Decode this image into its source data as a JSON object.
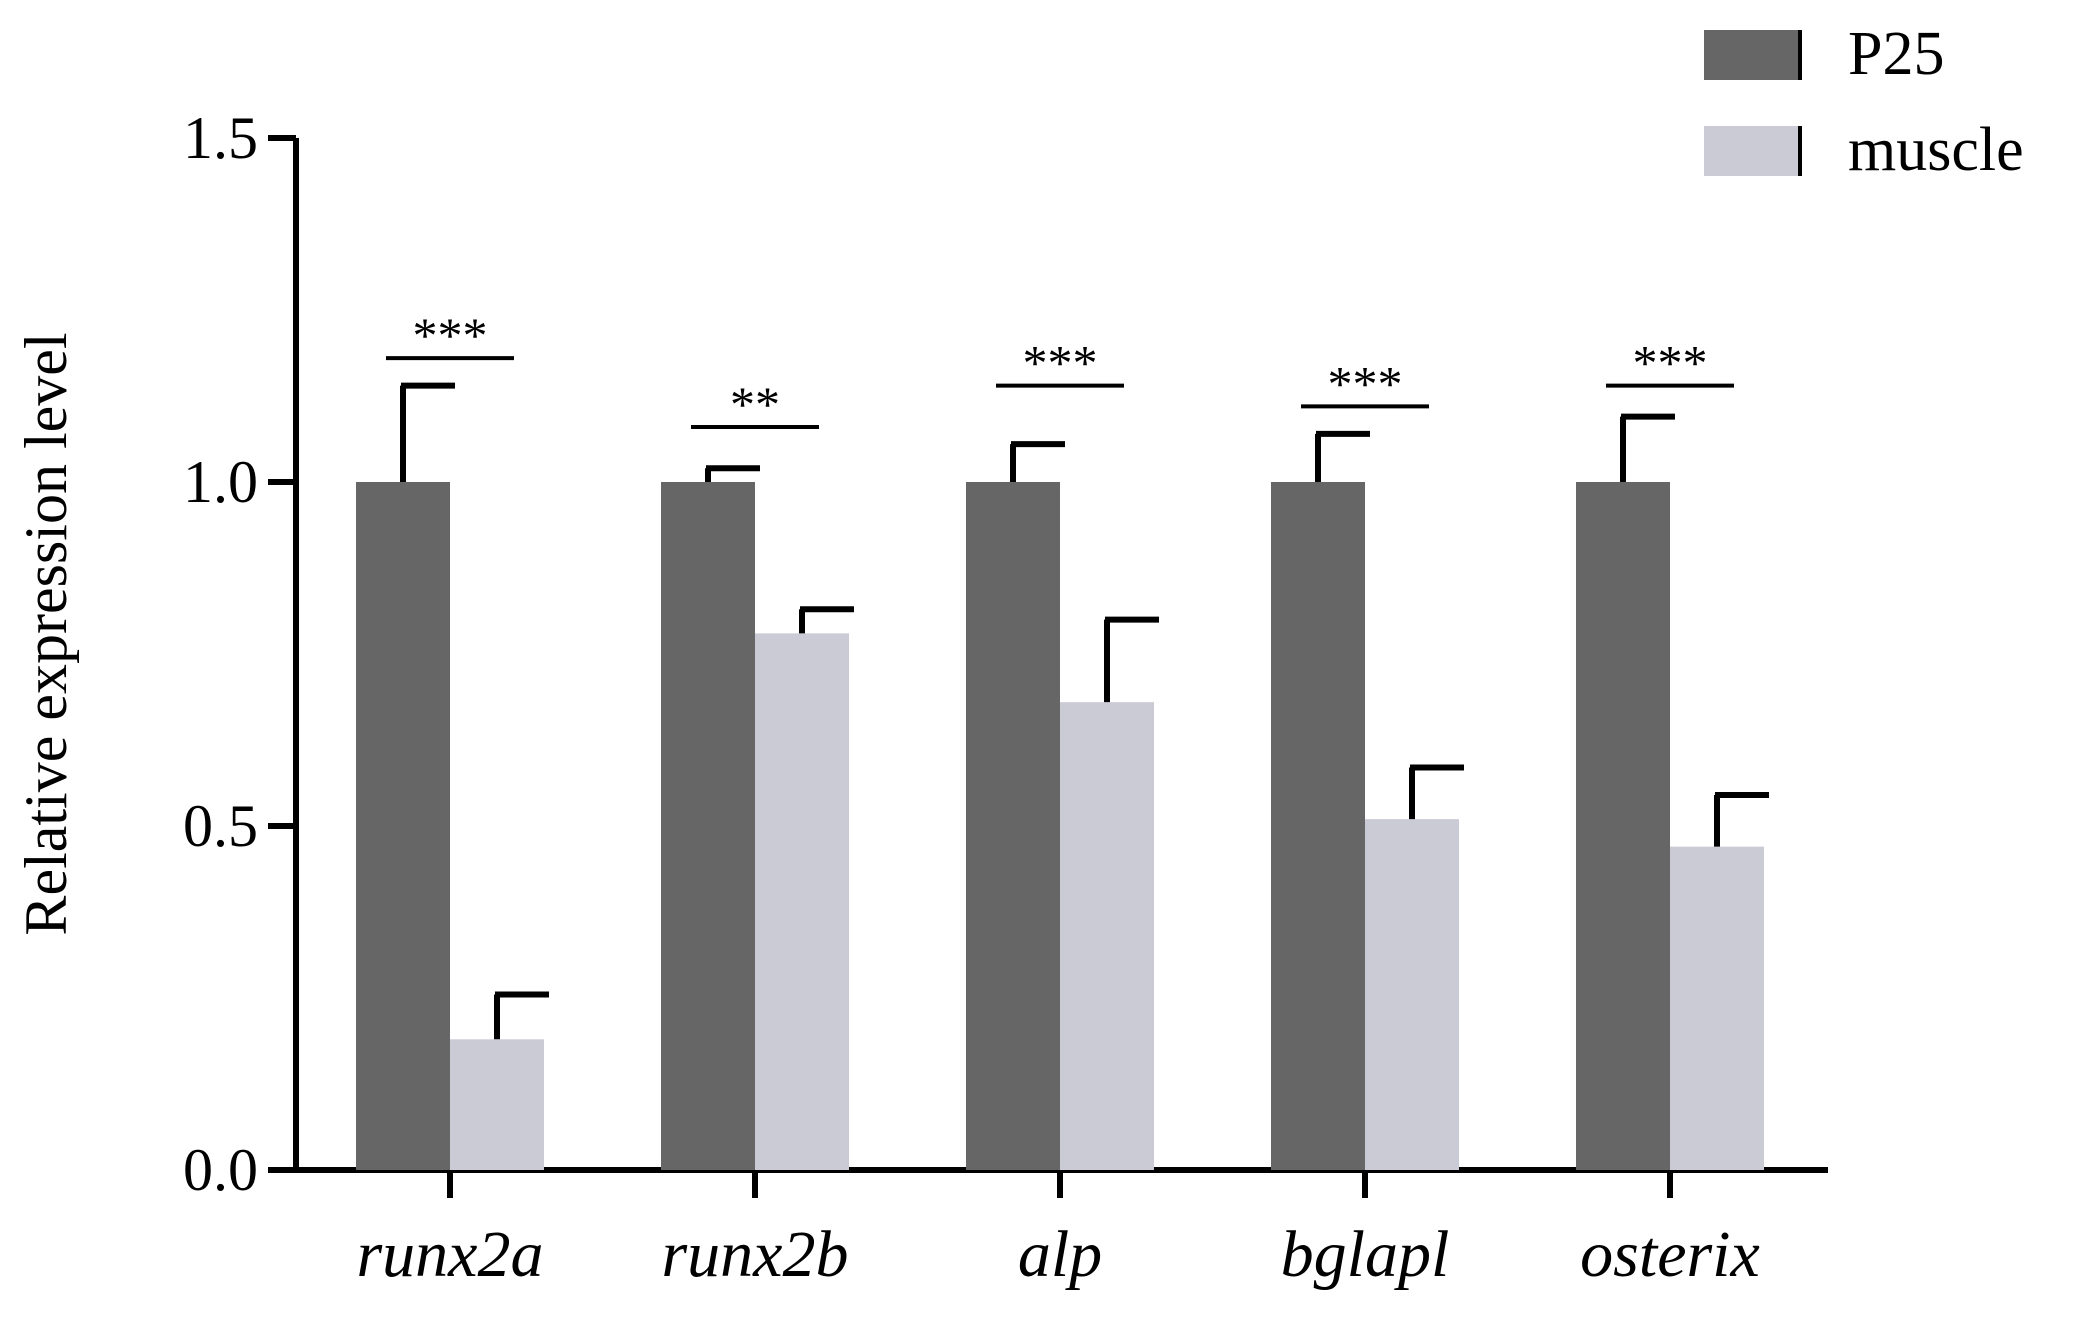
{
  "chart_data": {
    "type": "bar",
    "title": "",
    "xlabel": "",
    "ylabel": "Relative expression level",
    "ylim": [
      0,
      1.5
    ],
    "yticks": [
      0.0,
      0.5,
      1.0,
      1.5
    ],
    "ytick_labels": [
      "0.0",
      "0.5",
      "1.0",
      "1.5"
    ],
    "categories": [
      "runx2a",
      "runx2b",
      "alp",
      "bglapl",
      "osterix"
    ],
    "series": [
      {
        "name": "P25",
        "color": "#666666",
        "values": [
          1.0,
          1.0,
          1.0,
          1.0,
          1.0
        ],
        "errors": [
          0.14,
          0.02,
          0.055,
          0.07,
          0.095
        ]
      },
      {
        "name": "muscle",
        "color": "#cbcbd6",
        "values": [
          0.19,
          0.78,
          0.68,
          0.51,
          0.47
        ],
        "errors": [
          0.065,
          0.035,
          0.12,
          0.075,
          0.075
        ]
      }
    ],
    "significance": [
      "***",
      "**",
      "***",
      "***",
      "***"
    ],
    "significance_levels": [
      1.18,
      1.08,
      1.14,
      1.11,
      1.14
    ],
    "legend_position": "top-right",
    "grid": false
  }
}
